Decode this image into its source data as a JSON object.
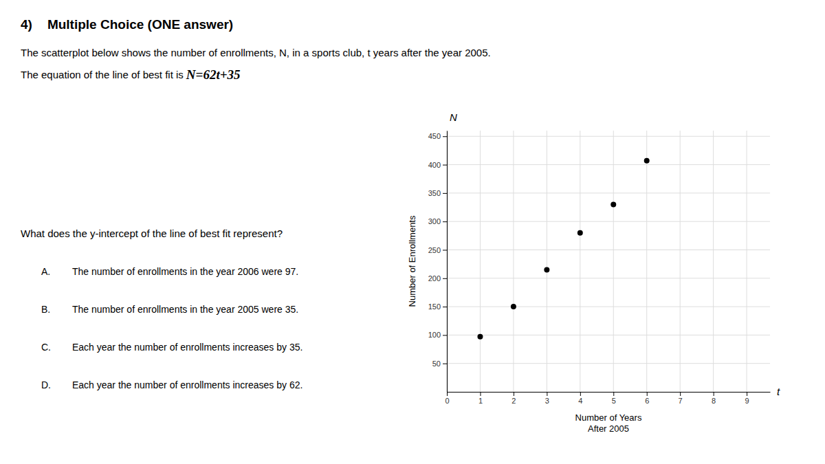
{
  "chart_data": {
    "type": "scatter",
    "title": "Multiple Choice (ONE answer)",
    "annotations": [
      "4)",
      "The scatterplot below shows the number of enrollments, N, in a sports club, t years after the year 2005.",
      "The equation of the line of best fit is ",
      "N=62t+35",
      "What does the y-intercept of the line of best fit represent?",
      "A.",
      "The number of enrollments in the year 2006 were 97.",
      "B.",
      "The number of enrollments in the year 2005 were 35.",
      "C.",
      "Each year the number of enrollments increases by 35.",
      "D.",
      "Each year the number of enrollments increases by 62.",
      "t",
      "N"
    ],
    "x": [
      1,
      2,
      3,
      4,
      5,
      6
    ],
    "values": [
      97,
      150,
      215,
      280,
      330,
      407
    ],
    "color": "#000000",
    "x_label": "Number of Years\nAfter 2005",
    "y_label": "Number of Enrollments",
    "xlim": [
      0,
      9.7
    ],
    "ylim": [
      0,
      460
    ],
    "xticks": [
      0,
      1,
      2,
      3,
      4,
      5,
      6,
      7,
      8,
      9
    ],
    "yticks": [
      50,
      100,
      150,
      200,
      250,
      300,
      350,
      400,
      450
    ],
    "grid": true
  }
}
